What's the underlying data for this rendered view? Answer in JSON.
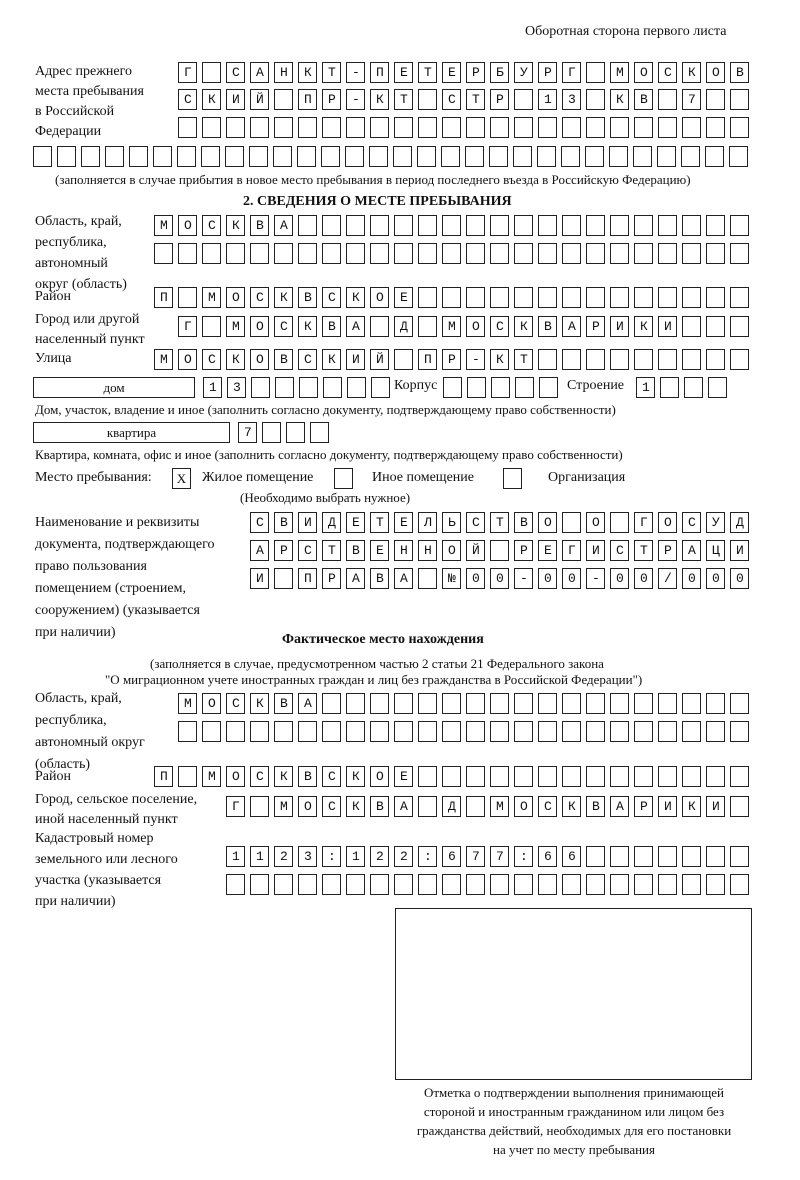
{
  "header": "Оборотная сторона первого листа",
  "prev_address": {
    "label": [
      "Адрес прежнего",
      "места пребывания",
      "в Российской",
      "Федерации"
    ],
    "rows": [
      "Г САНКТ-ПЕТЕРБУРГ МОСКОВ",
      "СКИЙ ПР-КТ СТР 13 КВ 7  ",
      "                        ",
      "                              "
    ],
    "note": "(заполняется в случае прибытия в новое место пребывания в период последнего въезда в Российскую Федерацию)"
  },
  "section2": {
    "title": "2. СВЕДЕНИЯ О МЕСТЕ ПРЕБЫВАНИЯ",
    "region": {
      "label": [
        "Область, край,",
        "республика,",
        "автономный",
        "округ (область)"
      ],
      "rows": [
        "МОСКВА                   ",
        "                         "
      ]
    },
    "district": {
      "label": [
        "Район"
      ],
      "rows": [
        "П МОСКВСКОЕ              "
      ]
    },
    "city": {
      "label": [
        "Город или другой",
        "населенный пункт"
      ],
      "rows": [
        "Г МОСКВА Д МОСКВАРИКИ   "
      ]
    },
    "street": {
      "label": [
        "Улица"
      ],
      "rows": [
        "МОСКОВСКИЙ ПР-КТ         "
      ]
    },
    "house": {
      "type": "дом",
      "number": "13      ",
      "korpus_label": "Корпус",
      "korpus": "     ",
      "building_label": "Строение",
      "building": "1   ",
      "caption": "Дом, участок, владение и иное (заполнить согласно документу, подтверждающему право собственности)"
    },
    "apartment": {
      "type": "квартира",
      "number": "7   ",
      "caption": "Квартира, комната, офис и иное (заполнить согласно документу, подтверждающему право собственности)"
    },
    "place": {
      "label": "Место пребывания:",
      "options": [
        {
          "mark": "X",
          "label": "Жилое помещение"
        },
        {
          "mark": "",
          "label": "Иное помещение"
        },
        {
          "mark": "",
          "label": "Организация"
        }
      ],
      "hint": "(Необходимо выбрать нужное)"
    },
    "document": {
      "label": [
        "Наименование и реквизиты",
        "документа, подтверждающего",
        "право пользования",
        "помещением (строением,",
        "сооружением) (указывается",
        "при наличии)"
      ],
      "rows": [
        "СВИДЕТЕЛЬСТВО О ГОСУД",
        "АРСТВЕННОЙ РЕГИСТРАЦИ",
        "И ПРАВА №00-00-00/000"
      ]
    }
  },
  "actual": {
    "title": "Фактическое место нахождения",
    "note1": "(заполняется в случае, предусмотренном частью 2 статьи 21 Федерального закона",
    "note2": "\"О миграционном учете иностранных граждан и лиц без гражданства в Российской Федерации\")",
    "region": {
      "label": [
        "Область, край,",
        "республика,",
        "автономный округ",
        "(область)"
      ],
      "rows": [
        "МОСКВА                  ",
        "                        "
      ]
    },
    "district": {
      "label": [
        "Район"
      ],
      "rows": [
        "П МОСКВСКОЕ              "
      ]
    },
    "city": {
      "label": [
        "Город, сельское поселение,",
        "иной населенный пункт"
      ],
      "rows": [
        "Г МОСКВА Д МОСКВАРИКИ "
      ]
    },
    "cadastre": {
      "label": [
        "Кадастровый номер",
        "земельного или лесного",
        "участка (указывается",
        "при наличии)"
      ],
      "rows": [
        "1123:122:677:66       ",
        "                      "
      ]
    }
  },
  "stamp": {
    "caption": [
      "Отметка о подтверждении выполнения принимающей",
      "стороной и иностранным гражданином или лицом без",
      "гражданства действий, необходимых для его постановки",
      "на учет по месту пребывания"
    ]
  }
}
